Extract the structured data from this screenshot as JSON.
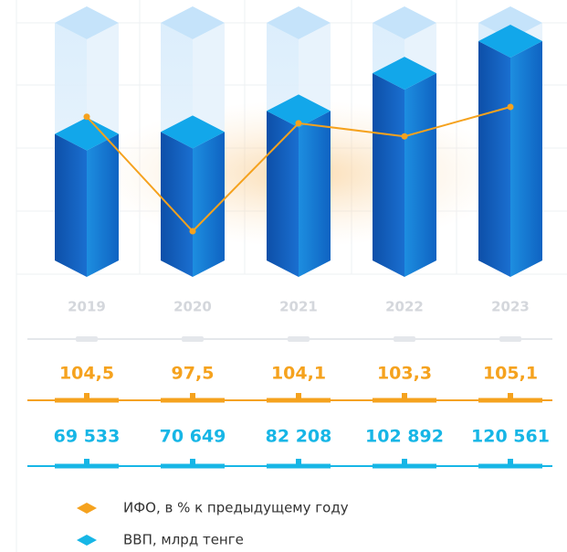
{
  "chart_data": {
    "type": "bar",
    "categories": [
      "2019",
      "2020",
      "2021",
      "2022",
      "2023"
    ],
    "series": [
      {
        "name": "ИФО, в % к предыдущему году",
        "type": "line",
        "color": "#f5a21e",
        "values": [
          104.5,
          97.5,
          104.1,
          103.3,
          105.1
        ],
        "value_labels": [
          "104,5",
          "97,5",
          "104,1",
          "103,3",
          "105,1"
        ]
      },
      {
        "name": "ВВП, млрд тенге",
        "type": "bar",
        "color": "#17b6e6",
        "values": [
          69533,
          70649,
          82208,
          102892,
          120561
        ],
        "value_labels": [
          "69 533",
          "70 649",
          "82 208",
          "102 892",
          "120 561"
        ]
      }
    ]
  }
}
